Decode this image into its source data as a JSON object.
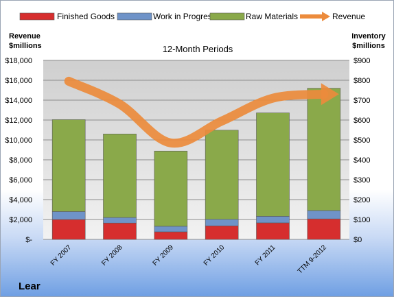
{
  "chart_data": {
    "type": "bar",
    "subtitle": "12-Month Periods",
    "company": "Lear",
    "categories": [
      "FY 2007",
      "FY 2008",
      "FY 2009",
      "FY 2010",
      "FY 2011",
      "TTM 9-2012"
    ],
    "left_axis": {
      "title_line1": "Revenue",
      "title_line2": "$millions",
      "range": [
        0,
        18000
      ],
      "step": 2000,
      "ticks": [
        "$-",
        "$2,000",
        "$4,000",
        "$6,000",
        "$8,000",
        "$10,000",
        "$12,000",
        "$14,000",
        "$16,000",
        "$18,000"
      ]
    },
    "right_axis": {
      "title_line1": "Inventory",
      "title_line2": "$millions",
      "range": [
        0,
        900
      ],
      "step": 100,
      "ticks": [
        "$0",
        "$100",
        "$200",
        "$300",
        "$400",
        "$500",
        "$600",
        "$700",
        "$800",
        "$900"
      ]
    },
    "series": [
      {
        "name": "Finished Goods",
        "axis": "right",
        "color": "#d62e2e",
        "values": [
          100,
          82,
          38,
          68,
          83,
          103
        ]
      },
      {
        "name": "Work in Progress",
        "axis": "right",
        "color": "#6f93c8",
        "values": [
          40,
          28,
          28,
          33,
          33,
          42
        ]
      },
      {
        "name": "Raw Materials",
        "axis": "right",
        "color": "#8aa94a",
        "values": [
          462,
          420,
          378,
          448,
          520,
          615
        ]
      },
      {
        "name": "Revenue",
        "axis": "left",
        "type": "line",
        "color": "#ec8b3c",
        "values": [
          15900,
          13600,
          9700,
          11900,
          14200,
          14600
        ]
      }
    ],
    "legend_position": "top",
    "grid": true
  }
}
